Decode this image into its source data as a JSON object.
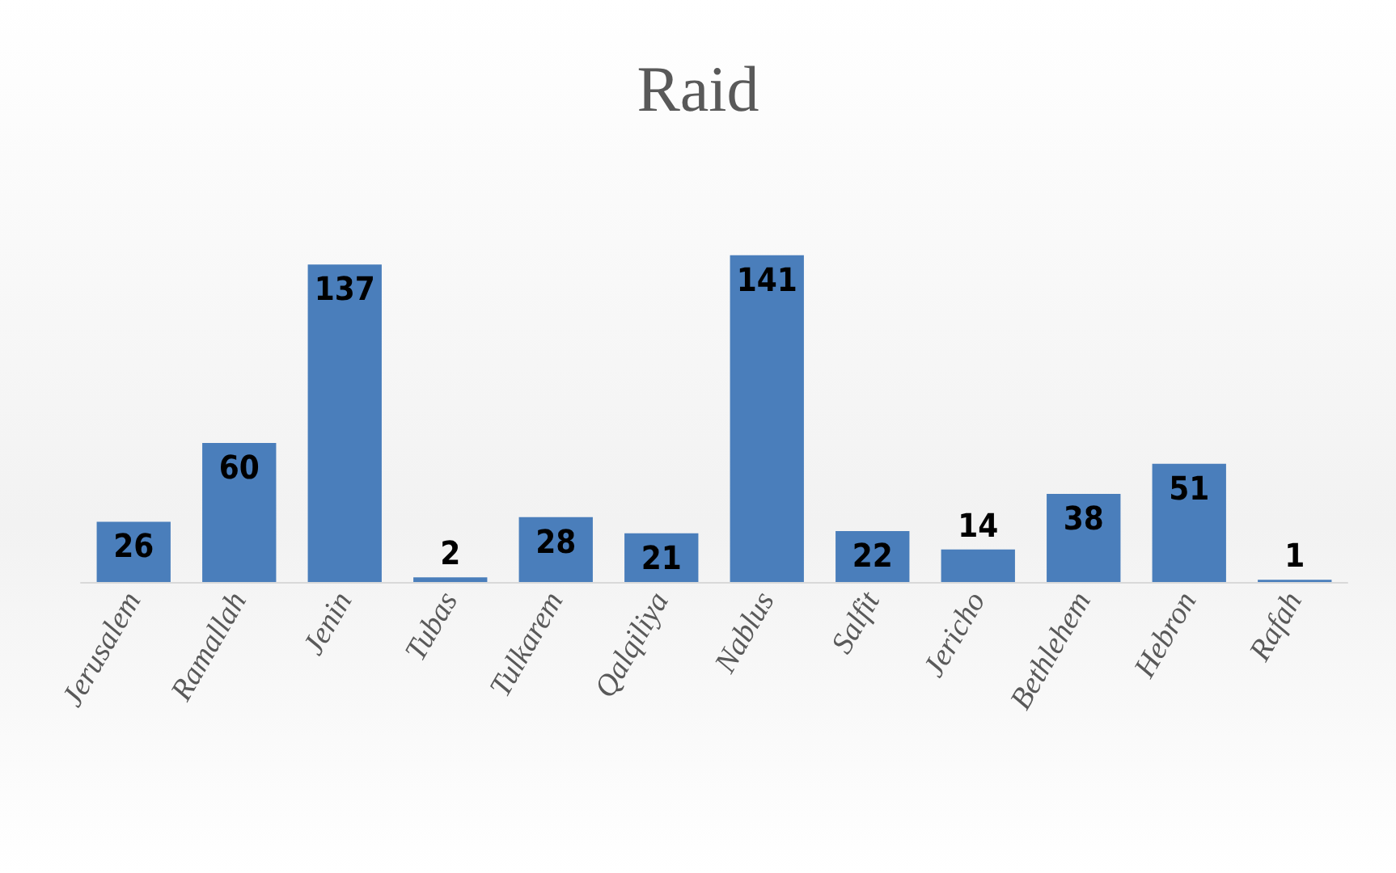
{
  "chart_data": {
    "type": "bar",
    "title": "Raid",
    "categories": [
      "Jerusalem",
      "Ramallah",
      "Jenin",
      "Tubas",
      "Tulkarem",
      "Qalqiliya",
      "Nablus",
      "Salfit",
      "Jericho",
      "Bethlehem",
      "Hebron",
      "Rafah"
    ],
    "values": [
      26,
      60,
      137,
      2,
      28,
      21,
      141,
      22,
      14,
      38,
      51,
      1
    ],
    "color": "#4a7ebb",
    "data_labels": true
  }
}
